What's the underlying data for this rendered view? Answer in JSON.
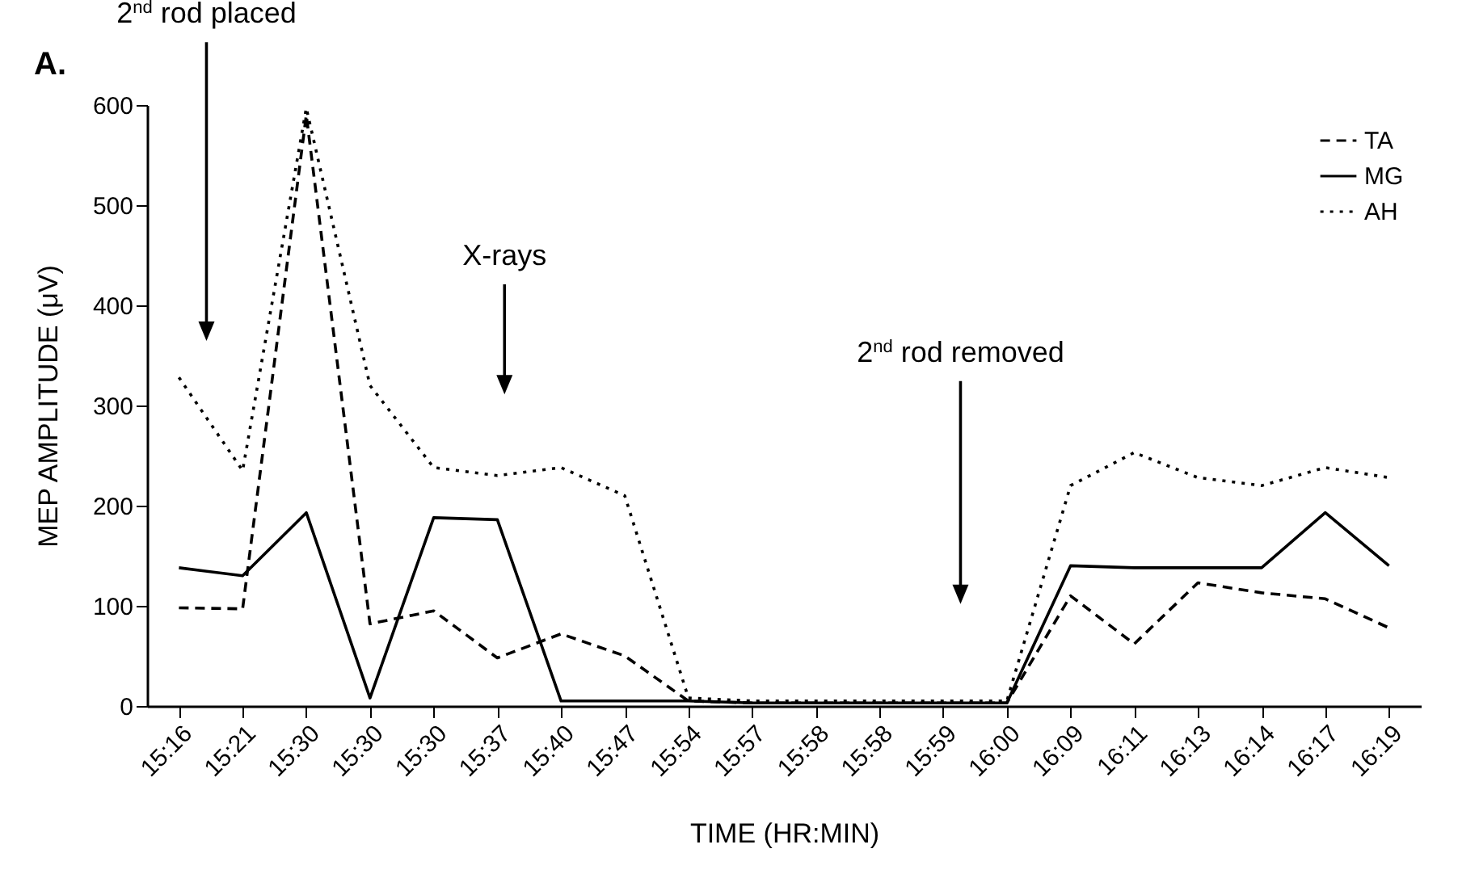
{
  "chart_data": {
    "type": "line",
    "title": "A.",
    "xlabel": "TIME (HR:MIN)",
    "ylabel": "MEP AMPLITUDE (μV)",
    "categories": [
      "15:16",
      "15:21",
      "15:30",
      "15:30",
      "15:30",
      "15:37",
      "15:40",
      "15:47",
      "15:54",
      "15:57",
      "15:58",
      "15:58",
      "15:59",
      "16:00",
      "16:09",
      "16:11",
      "16:13",
      "16:14",
      "16:17",
      "16:19"
    ],
    "series": [
      {
        "name": "TA",
        "color": "#000000",
        "line_style": "dashed",
        "values": [
          98,
          97,
          590,
          82,
          95,
          48,
          72,
          50,
          5,
          3,
          3,
          3,
          3,
          3,
          110,
          62,
          123,
          113,
          107,
          78
        ]
      },
      {
        "name": "MG",
        "color": "#000000",
        "line_style": "solid",
        "values": [
          138,
          130,
          193,
          8,
          188,
          186,
          5,
          5,
          5,
          3,
          3,
          3,
          3,
          3,
          140,
          138,
          138,
          138,
          193,
          140
        ]
      },
      {
        "name": "AH",
        "color": "#000000",
        "line_style": "dotted",
        "values": [
          328,
          235,
          597,
          320,
          238,
          230,
          238,
          210,
          8,
          5,
          5,
          5,
          5,
          5,
          220,
          253,
          228,
          220,
          238,
          228
        ]
      }
    ],
    "ylim": [
      0,
      600
    ],
    "yticks": [
      0,
      100,
      200,
      300,
      400,
      500,
      600
    ],
    "grid": false,
    "legend": "top right",
    "marker": "none",
    "annotations": [
      "2$^{nd}$ rod placed",
      "X-rays",
      "2$^{nd}$ rod removed"
    ]
  }
}
